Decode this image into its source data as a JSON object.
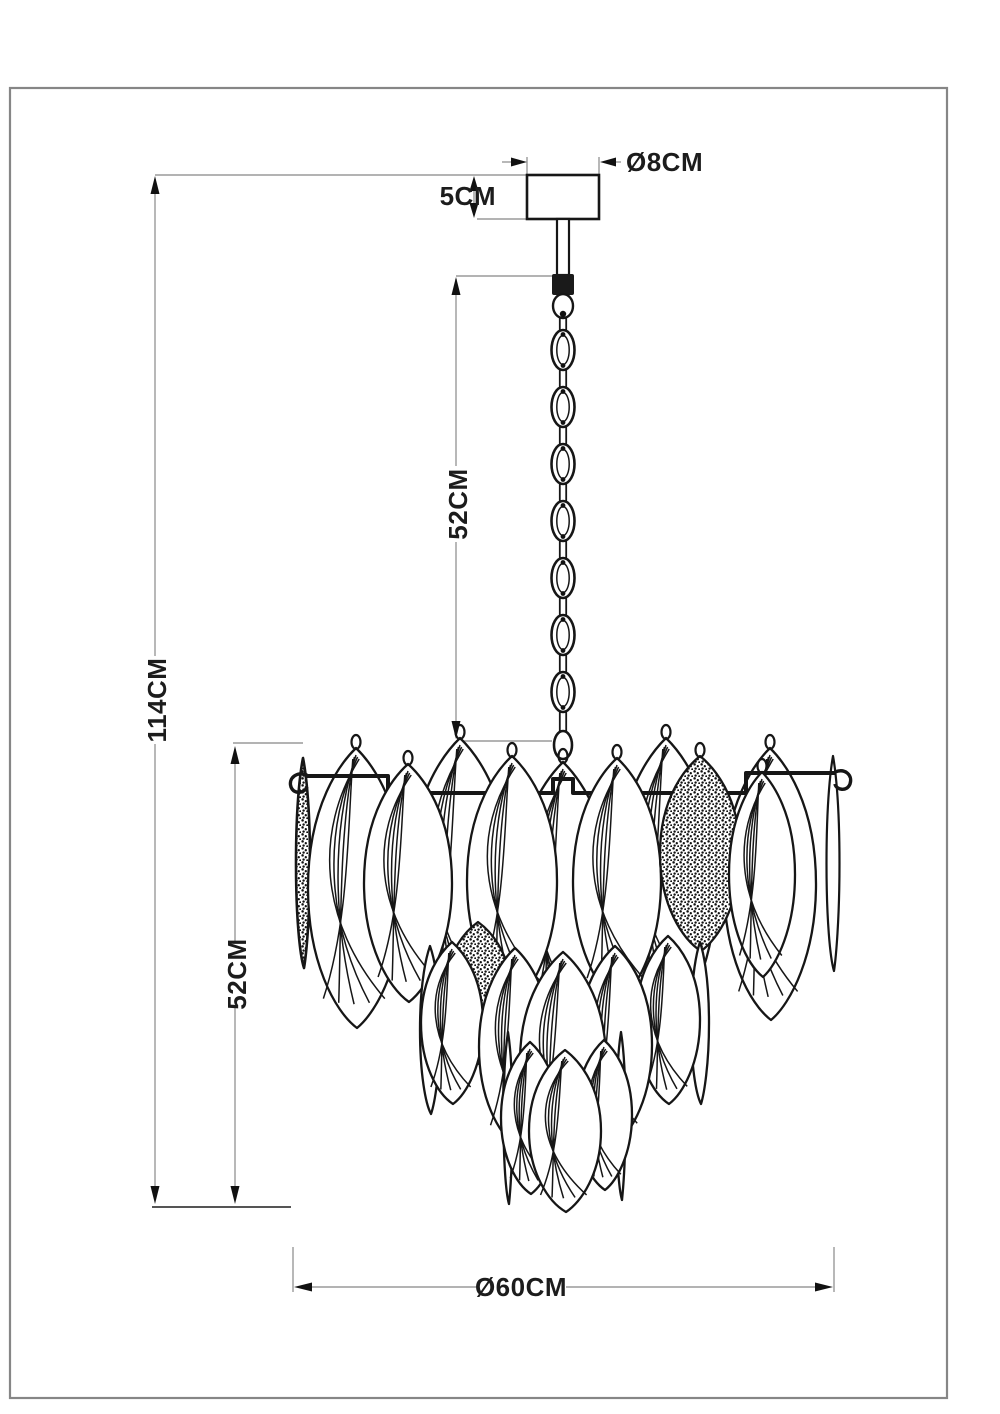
{
  "drawing": {
    "title": "chandelier-dimension-drawing",
    "dimensions": {
      "canopy_diameter": "Ø8CM",
      "canopy_height": "5CM",
      "chain_length": "52CM",
      "total_height": "114CM",
      "body_height": "52CM",
      "body_diameter": "Ø60CM"
    },
    "colors": {
      "line_art": "#161616",
      "dimension_line": "#9a9a9a",
      "text": "#1c1c1c",
      "border": "#868686",
      "background": "#ffffff"
    }
  }
}
